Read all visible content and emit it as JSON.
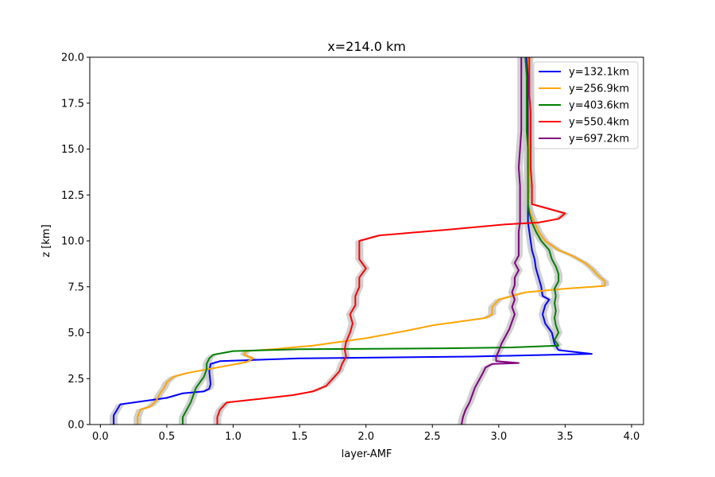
{
  "chart_data": {
    "type": "line",
    "title": "x=214.0 km",
    "xlabel": "layer-AMF",
    "ylabel": "z [km]",
    "xlim": [
      -0.08,
      4.09
    ],
    "ylim": [
      0,
      20
    ],
    "xticks": [
      0.0,
      0.5,
      1.0,
      1.5,
      2.0,
      2.5,
      3.0,
      3.5,
      4.0
    ],
    "xtick_labels": [
      "0.0",
      "0.5",
      "1.0",
      "1.5",
      "2.0",
      "2.5",
      "3.0",
      "3.5",
      "4.0"
    ],
    "yticks": [
      0.0,
      2.5,
      5.0,
      7.5,
      10.0,
      12.5,
      15.0,
      17.5,
      20.0
    ],
    "ytick_labels": [
      "0.0",
      "2.5",
      "5.0",
      "7.5",
      "10.0",
      "12.5",
      "15.0",
      "17.5",
      "20.0"
    ],
    "grid": false,
    "legend_position": "top-right",
    "uncertainty_band_color": "#c8c8c8",
    "series": [
      {
        "name": "y=132.1km",
        "color": "#0000ff",
        "points": [
          [
            0.1,
            0
          ],
          [
            0.1,
            0.5
          ],
          [
            0.15,
            1.1
          ],
          [
            0.3,
            1.25
          ],
          [
            0.5,
            1.45
          ],
          [
            0.62,
            1.7
          ],
          [
            0.78,
            1.8
          ],
          [
            0.82,
            1.95
          ],
          [
            0.83,
            2.2
          ],
          [
            0.82,
            2.9
          ],
          [
            0.83,
            3.3
          ],
          [
            0.9,
            3.45
          ],
          [
            1.5,
            3.6
          ],
          [
            2.8,
            3.7
          ],
          [
            3.7,
            3.85
          ],
          [
            3.45,
            4.05
          ],
          [
            3.42,
            4.4
          ],
          [
            3.4,
            5.0
          ],
          [
            3.35,
            5.5
          ],
          [
            3.33,
            6.0
          ],
          [
            3.35,
            6.5
          ],
          [
            3.38,
            6.8
          ],
          [
            3.33,
            7.0
          ],
          [
            3.32,
            7.5
          ],
          [
            3.3,
            8.0
          ],
          [
            3.28,
            8.5
          ],
          [
            3.27,
            9.0
          ],
          [
            3.25,
            9.5
          ],
          [
            3.24,
            10.0
          ],
          [
            3.23,
            10.5
          ],
          [
            3.22,
            11.0
          ],
          [
            3.22,
            11.5
          ],
          [
            3.22,
            12.0
          ],
          [
            3.23,
            13.0
          ],
          [
            3.22,
            14.0
          ],
          [
            3.22,
            15.0
          ],
          [
            3.22,
            16.0
          ],
          [
            3.22,
            17.0
          ],
          [
            3.22,
            18.0
          ],
          [
            3.22,
            19.0
          ],
          [
            3.21,
            20.0
          ]
        ]
      },
      {
        "name": "y=256.9km",
        "color": "#ffa500",
        "points": [
          [
            0.28,
            0
          ],
          [
            0.28,
            0.4
          ],
          [
            0.3,
            0.8
          ],
          [
            0.38,
            1.0
          ],
          [
            0.42,
            1.3
          ],
          [
            0.45,
            1.7
          ],
          [
            0.48,
            2.0
          ],
          [
            0.5,
            2.3
          ],
          [
            0.55,
            2.6
          ],
          [
            0.65,
            2.8
          ],
          [
            0.8,
            3.0
          ],
          [
            0.95,
            3.2
          ],
          [
            1.1,
            3.4
          ],
          [
            1.15,
            3.6
          ],
          [
            1.08,
            3.8
          ],
          [
            1.1,
            4.0
          ],
          [
            1.3,
            4.1
          ],
          [
            1.6,
            4.3
          ],
          [
            1.8,
            4.5
          ],
          [
            2.0,
            4.7
          ],
          [
            2.15,
            4.9
          ],
          [
            2.3,
            5.1
          ],
          [
            2.5,
            5.4
          ],
          [
            2.7,
            5.6
          ],
          [
            2.9,
            5.8
          ],
          [
            2.95,
            6.0
          ],
          [
            2.95,
            6.4
          ],
          [
            3.0,
            6.8
          ],
          [
            3.2,
            7.2
          ],
          [
            3.5,
            7.4
          ],
          [
            3.8,
            7.55
          ],
          [
            3.8,
            7.8
          ],
          [
            3.75,
            8.1
          ],
          [
            3.7,
            8.5
          ],
          [
            3.65,
            8.8
          ],
          [
            3.55,
            9.2
          ],
          [
            3.45,
            9.5
          ],
          [
            3.35,
            10.0
          ],
          [
            3.3,
            10.5
          ],
          [
            3.27,
            11.0
          ],
          [
            3.24,
            11.5
          ],
          [
            3.22,
            12.0
          ],
          [
            3.23,
            13.0
          ],
          [
            3.23,
            14.0
          ],
          [
            3.23,
            15.0
          ],
          [
            3.23,
            16.0
          ],
          [
            3.23,
            17.0
          ],
          [
            3.23,
            18.0
          ],
          [
            3.23,
            19.0
          ],
          [
            3.22,
            20.0
          ]
        ]
      },
      {
        "name": "y=403.6km",
        "color": "#008000",
        "points": [
          [
            0.62,
            0
          ],
          [
            0.62,
            0.4
          ],
          [
            0.65,
            0.8
          ],
          [
            0.68,
            1.2
          ],
          [
            0.7,
            1.6
          ],
          [
            0.72,
            2.0
          ],
          [
            0.75,
            2.3
          ],
          [
            0.78,
            2.6
          ],
          [
            0.8,
            3.0
          ],
          [
            0.8,
            3.3
          ],
          [
            0.82,
            3.6
          ],
          [
            0.85,
            3.8
          ],
          [
            1.0,
            4.0
          ],
          [
            1.5,
            4.1
          ],
          [
            2.6,
            4.15
          ],
          [
            3.1,
            4.2
          ],
          [
            3.45,
            4.3
          ],
          [
            3.42,
            4.6
          ],
          [
            3.45,
            5.0
          ],
          [
            3.43,
            5.4
          ],
          [
            3.42,
            5.8
          ],
          [
            3.43,
            6.2
          ],
          [
            3.42,
            6.6
          ],
          [
            3.43,
            7.0
          ],
          [
            3.42,
            7.4
          ],
          [
            3.45,
            7.8
          ],
          [
            3.45,
            8.2
          ],
          [
            3.43,
            8.6
          ],
          [
            3.4,
            9.0
          ],
          [
            3.38,
            9.5
          ],
          [
            3.32,
            10.0
          ],
          [
            3.28,
            10.5
          ],
          [
            3.25,
            11.0
          ],
          [
            3.23,
            11.5
          ],
          [
            3.22,
            12.0
          ],
          [
            3.22,
            13.0
          ],
          [
            3.22,
            14.0
          ],
          [
            3.22,
            15.0
          ],
          [
            3.21,
            16.0
          ],
          [
            3.21,
            17.0
          ],
          [
            3.21,
            18.0
          ],
          [
            3.21,
            19.0
          ],
          [
            3.2,
            20.0
          ]
        ]
      },
      {
        "name": "y=550.4km",
        "color": "#ff0000",
        "points": [
          [
            0.88,
            0
          ],
          [
            0.88,
            0.4
          ],
          [
            0.9,
            0.8
          ],
          [
            0.95,
            1.2
          ],
          [
            1.2,
            1.4
          ],
          [
            1.45,
            1.6
          ],
          [
            1.6,
            1.8
          ],
          [
            1.7,
            2.1
          ],
          [
            1.75,
            2.5
          ],
          [
            1.8,
            2.9
          ],
          [
            1.82,
            3.3
          ],
          [
            1.85,
            3.7
          ],
          [
            1.84,
            4.1
          ],
          [
            1.85,
            4.5
          ],
          [
            1.88,
            5.0
          ],
          [
            1.9,
            5.5
          ],
          [
            1.88,
            6.0
          ],
          [
            1.92,
            6.5
          ],
          [
            1.92,
            7.0
          ],
          [
            1.95,
            7.5
          ],
          [
            1.95,
            8.0
          ],
          [
            2.0,
            8.5
          ],
          [
            1.95,
            9.0
          ],
          [
            1.95,
            9.5
          ],
          [
            1.95,
            10.0
          ],
          [
            2.1,
            10.3
          ],
          [
            2.6,
            10.6
          ],
          [
            3.05,
            10.9
          ],
          [
            3.3,
            11.0
          ],
          [
            3.45,
            11.2
          ],
          [
            3.5,
            11.5
          ],
          [
            3.35,
            11.8
          ],
          [
            3.25,
            12.0
          ],
          [
            3.25,
            12.5
          ],
          [
            3.25,
            13.0
          ],
          [
            3.24,
            14.0
          ],
          [
            3.24,
            15.0
          ],
          [
            3.24,
            16.0
          ],
          [
            3.24,
            17.0
          ],
          [
            3.23,
            18.0
          ],
          [
            3.23,
            19.0
          ],
          [
            3.23,
            20.0
          ]
        ]
      },
      {
        "name": "y=697.2km",
        "color": "#800080",
        "points": [
          [
            2.72,
            0
          ],
          [
            2.73,
            0.4
          ],
          [
            2.75,
            0.8
          ],
          [
            2.78,
            1.2
          ],
          [
            2.8,
            1.6
          ],
          [
            2.82,
            2.0
          ],
          [
            2.85,
            2.4
          ],
          [
            2.88,
            2.8
          ],
          [
            2.9,
            3.1
          ],
          [
            2.95,
            3.3
          ],
          [
            3.15,
            3.35
          ],
          [
            2.98,
            3.45
          ],
          [
            2.98,
            3.7
          ],
          [
            3.0,
            4.0
          ],
          [
            3.02,
            4.4
          ],
          [
            3.05,
            4.8
          ],
          [
            3.08,
            5.2
          ],
          [
            3.1,
            5.6
          ],
          [
            3.12,
            6.0
          ],
          [
            3.1,
            6.4
          ],
          [
            3.12,
            6.8
          ],
          [
            3.1,
            7.2
          ],
          [
            3.12,
            7.6
          ],
          [
            3.12,
            8.0
          ],
          [
            3.15,
            8.4
          ],
          [
            3.12,
            8.8
          ],
          [
            3.15,
            9.2
          ],
          [
            3.15,
            9.6
          ],
          [
            3.15,
            10.0
          ],
          [
            3.15,
            10.5
          ],
          [
            3.16,
            11.0
          ],
          [
            3.16,
            11.5
          ],
          [
            3.16,
            12.0
          ],
          [
            3.16,
            13.0
          ],
          [
            3.15,
            14.0
          ],
          [
            3.16,
            15.0
          ],
          [
            3.17,
            16.0
          ],
          [
            3.17,
            17.0
          ],
          [
            3.17,
            18.0
          ],
          [
            3.17,
            19.0
          ],
          [
            3.17,
            20.0
          ]
        ]
      }
    ]
  }
}
